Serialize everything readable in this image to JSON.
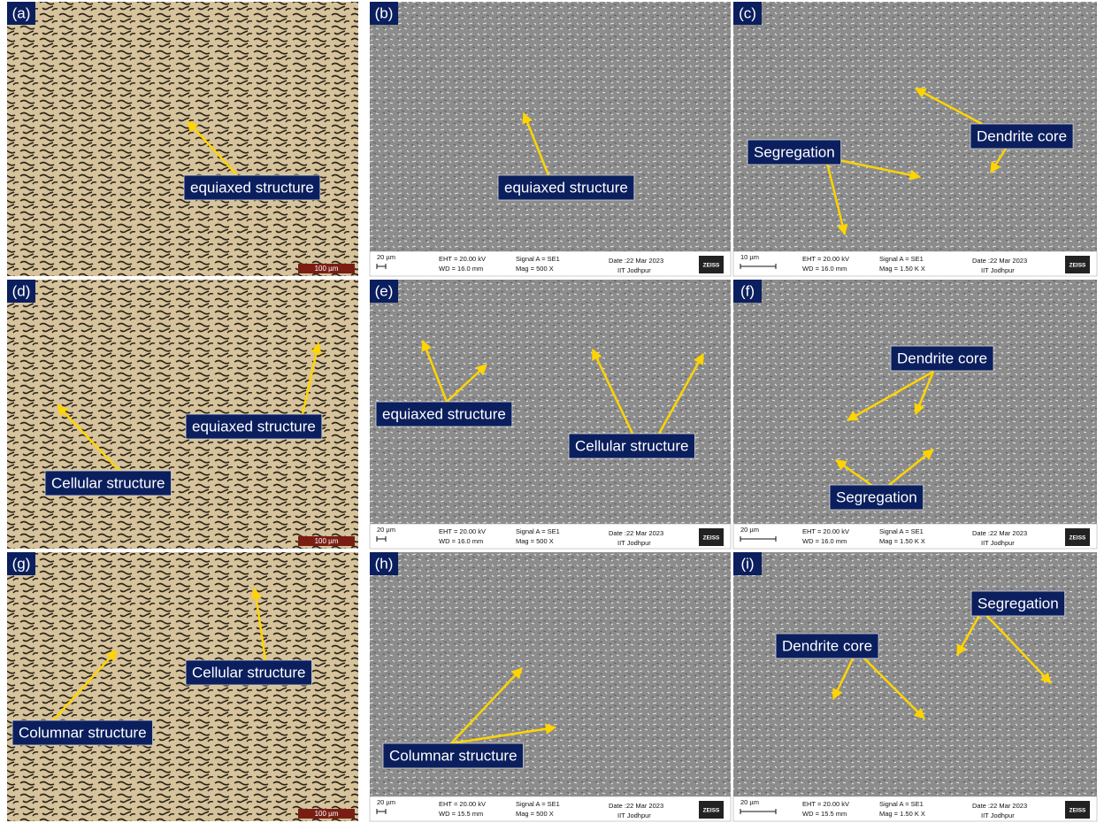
{
  "panels": [
    {
      "label": "(a)",
      "annotations": [
        "equiaxed structure"
      ],
      "scale_bar": "100 µm"
    },
    {
      "label": "(b)",
      "annotations": [
        "equiaxed structure"
      ],
      "info_bar": {
        "scale": "20 µm",
        "eht": "EHT = 20.00 kV",
        "wd": "WD = 16.0 mm",
        "signal": "Signal A = SE1",
        "mag": "Mag =  500 X",
        "date": "Date :22 Mar 2023",
        "institute": "IIT Jodhpur",
        "logo": "ZEISS"
      }
    },
    {
      "label": "(c)",
      "annotations": [
        "Segregation",
        "Dendrite core"
      ],
      "info_bar": {
        "scale": "10 µm",
        "eht": "EHT = 20.00 kV",
        "wd": "WD = 16.0 mm",
        "signal": "Signal A = SE1",
        "mag": "Mag =  1.50 K X",
        "date": "Date :22 Mar 2023",
        "institute": "IIT Jodhpur",
        "logo": "ZEISS"
      }
    },
    {
      "label": "(d)",
      "annotations": [
        "equiaxed structure",
        "Cellular structure"
      ],
      "scale_bar": "100 µm"
    },
    {
      "label": "(e)",
      "annotations": [
        "equiaxed structure",
        "Cellular structure"
      ],
      "info_bar": {
        "scale": "20 µm",
        "eht": "EHT = 20.00 kV",
        "wd": "WD = 16.0 mm",
        "signal": "Signal A = SE1",
        "mag": "Mag =  500 X",
        "date": "Date :22 Mar 2023",
        "institute": "IIT Jodhpur",
        "logo": "ZEISS"
      }
    },
    {
      "label": "(f)",
      "annotations": [
        "Dendrite core",
        "Segregation"
      ],
      "info_bar": {
        "scale": "20 µm",
        "eht": "EHT = 20.00 kV",
        "wd": "WD = 16.0 mm",
        "signal": "Signal A = SE1",
        "mag": "Mag =  1.50 K X",
        "date": "Date :22 Mar 2023",
        "institute": "IIT Jodhpur",
        "logo": "ZEISS"
      }
    },
    {
      "label": "(g)",
      "annotations": [
        "Columnar structure",
        "Cellular structure"
      ],
      "scale_bar": "100 µm"
    },
    {
      "label": "(h)",
      "annotations": [
        "Columnar structure"
      ],
      "info_bar": {
        "scale": "20 µm",
        "eht": "EHT = 20.00 kV",
        "wd": "WD = 15.5 mm",
        "signal": "Signal A = SE1",
        "mag": "Mag =  500 X",
        "date": "Date :22 Mar 2023",
        "institute": "IIT Jodhpur",
        "logo": "ZEISS"
      }
    },
    {
      "label": "(i)",
      "annotations": [
        "Segregation",
        "Dendrite core"
      ],
      "info_bar": {
        "scale": "20 µm",
        "eht": "EHT = 20.00 kV",
        "wd": "WD = 15.5 mm",
        "signal": "Signal A = SE1",
        "mag": "Mag =  1.50 K X",
        "date": "Date :22 Mar 2023",
        "institute": "IIT Jodhpur",
        "logo": "ZEISS"
      }
    }
  ]
}
